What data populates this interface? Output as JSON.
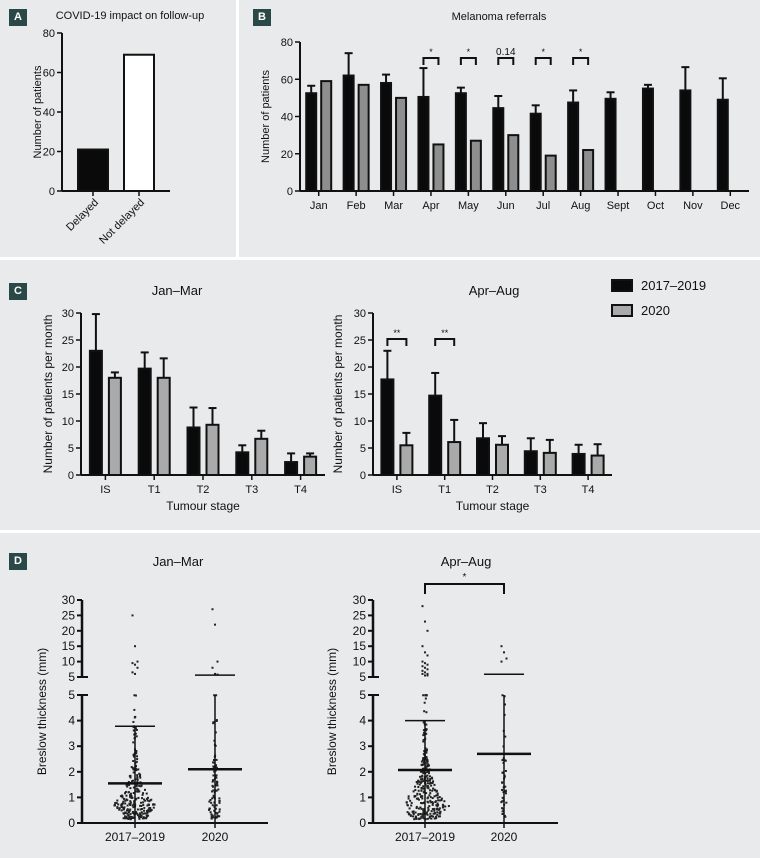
{
  "panels": {
    "A": {
      "label": "A"
    },
    "B": {
      "label": "B"
    },
    "C": {
      "label": "C"
    },
    "D": {
      "label": "D"
    }
  },
  "chart_data": [
    {
      "id": "A",
      "type": "bar",
      "title": "COVID-19 impact on follow-up",
      "xlabel": "",
      "ylabel": "Number of patients",
      "ylim": [
        0,
        80
      ],
      "yticks": [
        0,
        20,
        40,
        60,
        80
      ],
      "categories": [
        "Delayed",
        "Not delayed"
      ],
      "values": [
        21,
        69
      ],
      "colors": [
        "#0a0a0a",
        "#ffffff"
      ]
    },
    {
      "id": "B",
      "type": "bar",
      "title": "Melanoma referrals",
      "xlabel": "",
      "ylabel": "Number of patients",
      "ylim": [
        0,
        80
      ],
      "yticks": [
        0,
        20,
        40,
        60,
        80
      ],
      "categories": [
        "Jan",
        "Feb",
        "Mar",
        "Apr",
        "May",
        "Jun",
        "Jul",
        "Aug",
        "Sept",
        "Oct",
        "Nov",
        "Dec"
      ],
      "series": [
        {
          "name": "2017–2019",
          "color": "#0a0a0a",
          "values": [
            52.5,
            62,
            58,
            50.5,
            52.5,
            44.5,
            41.5,
            47.5,
            49.5,
            55,
            54,
            49
          ],
          "error": [
            4,
            12,
            4.5,
            15.5,
            3,
            6.5,
            4.5,
            6.5,
            3.5,
            2,
            12.5,
            11.5
          ]
        },
        {
          "name": "2020",
          "color": "#8e8e8e",
          "values": [
            59,
            57,
            50,
            25,
            27,
            30,
            19,
            22,
            null,
            null,
            null,
            null
          ]
        }
      ],
      "annotations": [
        {
          "category": "Apr",
          "text": "*"
        },
        {
          "category": "May",
          "text": "*"
        },
        {
          "category": "Jun",
          "text": "0.14"
        },
        {
          "category": "Jul",
          "text": "*"
        },
        {
          "category": "Aug",
          "text": "*"
        }
      ]
    },
    {
      "id": "C1",
      "type": "bar",
      "title": "Jan–Mar",
      "xlabel": "Tumour stage",
      "ylabel": "Number of patients per month",
      "ylim": [
        0,
        30
      ],
      "yticks": [
        0,
        5,
        10,
        15,
        20,
        25,
        30
      ],
      "categories": [
        "IS",
        "T1",
        "T2",
        "T3",
        "T4"
      ],
      "series": [
        {
          "name": "2017–2019",
          "color": "#0a0a0a",
          "values": [
            23,
            19.7,
            8.8,
            4.2,
            2.4
          ],
          "error": [
            6.8,
            3,
            3.7,
            1.3,
            1.6
          ]
        },
        {
          "name": "2020",
          "color": "#aaaaaa",
          "values": [
            18,
            18,
            9.3,
            6.7,
            3.4
          ],
          "error": [
            1,
            3.6,
            3.1,
            1.5,
            0.6
          ]
        }
      ],
      "annotations": []
    },
    {
      "id": "C2",
      "type": "bar",
      "title": "Apr–Aug",
      "xlabel": "Tumour stage",
      "ylabel": "Number of patients per month",
      "ylim": [
        0,
        30
      ],
      "yticks": [
        0,
        5,
        10,
        15,
        20,
        25,
        30
      ],
      "categories": [
        "IS",
        "T1",
        "T2",
        "T3",
        "T4"
      ],
      "series": [
        {
          "name": "2017–2019",
          "color": "#0a0a0a",
          "values": [
            17.7,
            14.7,
            6.8,
            4.4,
            3.9
          ],
          "error": [
            5.3,
            4.2,
            2.8,
            2.4,
            1.7
          ]
        },
        {
          "name": "2020",
          "color": "#aaaaaa",
          "values": [
            5.5,
            6.1,
            5.6,
            4.1,
            3.6
          ],
          "error": [
            2.3,
            4.1,
            1.6,
            2.4,
            2.1
          ]
        }
      ],
      "annotations": [
        {
          "category": "IS",
          "text": "**"
        },
        {
          "category": "T1",
          "text": "**"
        }
      ],
      "legend": {
        "position": "top-right",
        "entries": [
          {
            "name": "2017–2019",
            "color": "#0a0a0a"
          },
          {
            "name": "2020",
            "color": "#aaaaaa"
          }
        ]
      }
    },
    {
      "id": "D1",
      "type": "scatter",
      "title": "Jan–Mar",
      "xlabel": "",
      "ylabel": "Breslow thickness (mm)",
      "y_lower": {
        "range": [
          0,
          5
        ],
        "ticks": [
          0,
          1,
          2,
          3,
          4,
          5
        ]
      },
      "y_upper": {
        "range": [
          5,
          30
        ],
        "ticks": [
          5,
          10,
          15,
          20,
          25,
          30
        ]
      },
      "categories": [
        "2017–2019",
        "2020"
      ],
      "groups": [
        {
          "name": "2017–2019",
          "mean": 1.55,
          "upper_sd": 3.78,
          "n_approx": 260,
          "outliers": [
            25,
            15,
            10,
            9.5,
            9,
            8,
            6.5,
            6
          ]
        },
        {
          "name": "2020",
          "mean": 2.1,
          "upper_sd": 5.6,
          "n_approx": 90,
          "outliers": [
            27,
            22,
            10,
            8,
            6,
            5.8
          ]
        }
      ],
      "annotations": []
    },
    {
      "id": "D2",
      "type": "scatter",
      "title": "Apr–Aug",
      "xlabel": "",
      "ylabel": "Breslow thickness (mm)",
      "y_lower": {
        "range": [
          0,
          5
        ],
        "ticks": [
          0,
          1,
          2,
          3,
          4,
          5
        ]
      },
      "y_upper": {
        "range": [
          5,
          30
        ],
        "ticks": [
          5,
          10,
          15,
          20,
          25,
          30
        ]
      },
      "categories": [
        "2017–2019",
        "2020"
      ],
      "groups": [
        {
          "name": "2017–2019",
          "mean": 2.07,
          "upper_sd": 4.0,
          "n_approx": 300,
          "outliers": [
            28,
            23,
            20,
            15,
            13,
            12,
            10,
            9.5,
            9,
            8.5,
            8,
            7.5,
            7,
            6.5,
            6,
            6,
            5.5,
            5.5
          ]
        },
        {
          "name": "2020",
          "mean": 2.7,
          "upper_sd": 5.9,
          "n_approx": 40,
          "outliers": [
            15,
            13,
            11,
            10
          ]
        }
      ],
      "annotations": [
        {
          "between": [
            "2017–2019",
            "2020"
          ],
          "text": "*"
        }
      ]
    }
  ]
}
